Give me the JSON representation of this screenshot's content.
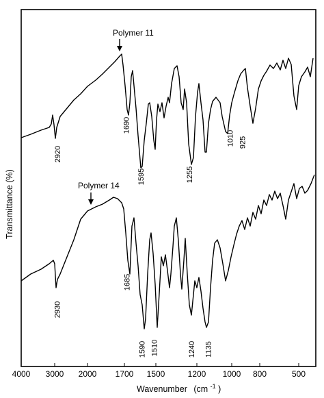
{
  "chart_data": {
    "type": "line",
    "title": "",
    "xlabel": "Wavenumber",
    "xlabel_unit": "(cm",
    "xlabel_sup": "-1",
    "xlabel_close": ")",
    "ylabel": "Transmittance (%)",
    "x_scale": "piecewise-linear (4000–2000 compressed, 2000–400 expanded)",
    "x_ticks": [
      "4000",
      "3000",
      "2000",
      "1700",
      "1500",
      "1200",
      "1000",
      "800",
      "500"
    ],
    "x_tick_values": [
      4000,
      3000,
      2000,
      1700,
      1500,
      1200,
      1000,
      800,
      500
    ],
    "xlim": [
      4000,
      400
    ],
    "grid": false,
    "series": [
      {
        "name": "Polymer 11",
        "peaks": [
          {
            "label": "2920",
            "x": 2920
          },
          {
            "label": "1690",
            "x": 1690
          },
          {
            "label": "1595",
            "x": 1595
          },
          {
            "label": "1255",
            "x": 1255
          },
          {
            "label": "1010",
            "x": 1010
          },
          {
            "label": "925",
            "x": 925
          }
        ]
      },
      {
        "name": "Polymer 14",
        "peaks": [
          {
            "label": "2930",
            "x": 2930
          },
          {
            "label": "1685",
            "x": 1685
          },
          {
            "label": "1590",
            "x": 1590
          },
          {
            "label": "1510",
            "x": 1510
          },
          {
            "label": "1240",
            "x": 1240
          },
          {
            "label": "1135",
            "x": 1135
          }
        ]
      }
    ]
  }
}
